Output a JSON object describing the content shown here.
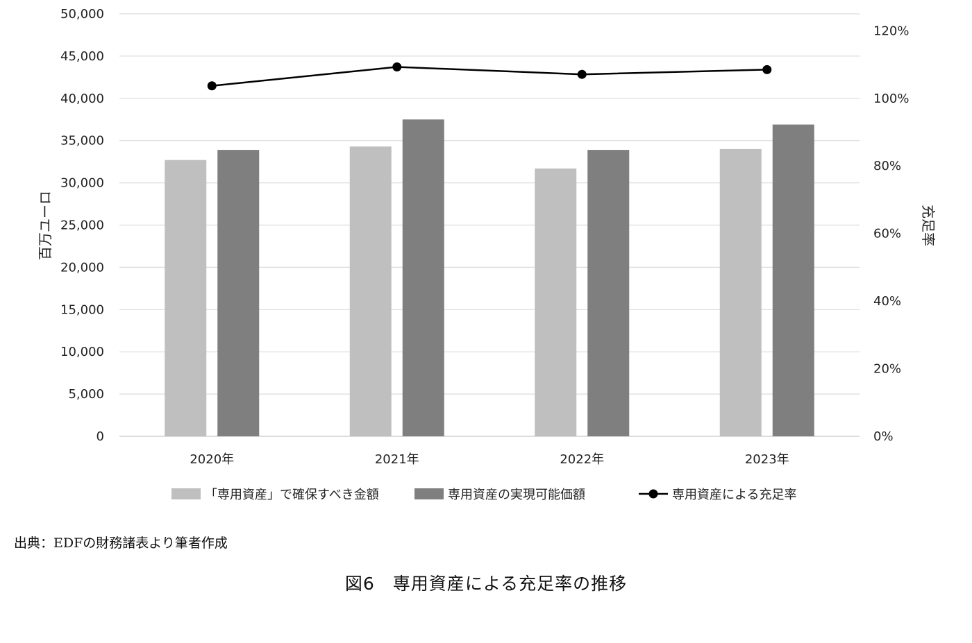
{
  "chart_data": {
    "type": "bar",
    "categories": [
      "2020年",
      "2021年",
      "2022年",
      "2023年"
    ],
    "series": [
      {
        "name": "「専用資産」で確保すべき金額",
        "kind": "bar",
        "axis": "left",
        "color": "#bfbfbf",
        "values": [
          32700,
          34300,
          31700,
          34000
        ]
      },
      {
        "name": "専用資産の実現可能価額",
        "kind": "bar",
        "axis": "left",
        "color": "#7f7f7f",
        "values": [
          33900,
          37500,
          33900,
          36900
        ]
      },
      {
        "name": "専用資産による充足率",
        "kind": "line",
        "axis": "right",
        "color": "#000000",
        "values": [
          103.7,
          109.3,
          107.1,
          108.5
        ]
      }
    ],
    "ylabel": "百万ユーロ",
    "y2label": "充足率",
    "ylim": [
      0,
      50000
    ],
    "y2lim": [
      0,
      120
    ],
    "yticks": [
      "0",
      "5,000",
      "10,000",
      "15,000",
      "20,000",
      "25,000",
      "30,000",
      "35,000",
      "40,000",
      "45,000",
      "50,000"
    ],
    "y2ticks": [
      "0%",
      "20%",
      "40%",
      "60%",
      "80%",
      "100%",
      "120%"
    ],
    "grid": true,
    "legend": "bottom"
  },
  "source_note": "出典：EDFの財務諸表より筆者作成",
  "caption": "図6　専用資産による充足率の推移"
}
